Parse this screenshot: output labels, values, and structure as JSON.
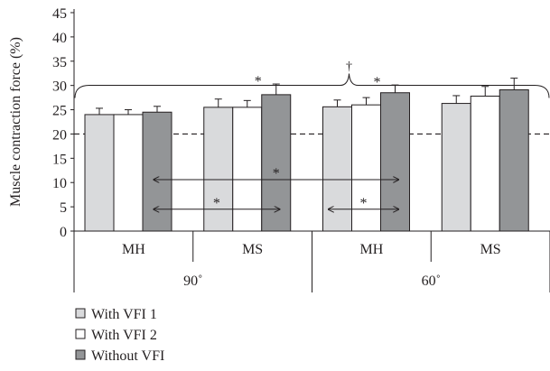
{
  "chart_data": {
    "type": "bar",
    "ylabel": "Muscle contraction force (%)",
    "ylim": [
      0,
      45
    ],
    "yticks": [
      0,
      5,
      10,
      15,
      20,
      25,
      30,
      35,
      40,
      45
    ],
    "grid": false,
    "reference_line": {
      "value": 20,
      "style": "dashed"
    },
    "groups": [
      {
        "label": "MH",
        "angle": "90˚"
      },
      {
        "label": "MS",
        "angle": "90˚"
      },
      {
        "label": "MH",
        "angle": "60˚"
      },
      {
        "label": "MS",
        "angle": "60˚"
      }
    ],
    "angles": [
      "90˚",
      "60˚"
    ],
    "series": [
      {
        "name": "With VFI 1",
        "color": "#d9dadc",
        "values": [
          24.0,
          25.5,
          25.6,
          26.3
        ],
        "errors": [
          1.3,
          1.7,
          1.4,
          1.6
        ]
      },
      {
        "name": "With VFI 2",
        "color": "#ffffff",
        "values": [
          24.0,
          25.5,
          26.0,
          27.8
        ],
        "errors": [
          1.0,
          1.4,
          1.5,
          2.0
        ]
      },
      {
        "name": "Without VFI",
        "color": "#939597",
        "values": [
          24.5,
          28.1,
          28.5,
          29.1
        ],
        "errors": [
          1.2,
          2.2,
          1.6,
          2.4
        ]
      }
    ],
    "significance_marks": {
      "bar_asterisks": [
        {
          "group": 1,
          "series": 2,
          "label": "*"
        },
        {
          "group": 2,
          "series": 2,
          "label": "*"
        }
      ],
      "brackets": [
        {
          "from_group": 0,
          "to_group": 2,
          "series": 2,
          "y": 10.6,
          "label": "*"
        },
        {
          "from_group": 0,
          "to_group": 1,
          "series": 2,
          "y": 4.5,
          "label": "*"
        },
        {
          "from_group": 2,
          "to_group": 2,
          "from_series": 0,
          "to_series": 2,
          "y": 4.5,
          "label": "*"
        }
      ],
      "overall": {
        "label": "†",
        "y": 33
      }
    },
    "legend": {
      "position": "bottom-left"
    }
  }
}
